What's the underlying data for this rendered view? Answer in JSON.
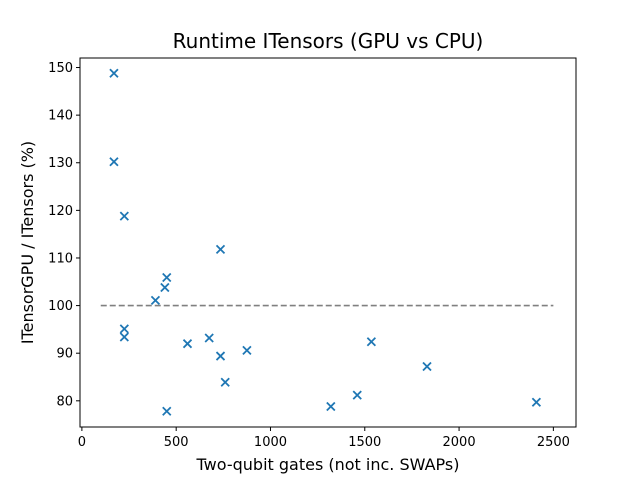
{
  "chart_data": {
    "type": "scatter",
    "title": "Runtime ITensors (GPU vs CPU)",
    "xlabel": "Two-qubit gates (not inc. SWAPs)",
    "ylabel": "ITensorGPU / ITensors (%)",
    "xlim": [
      -10,
      2620
    ],
    "ylim": [
      74.5,
      152
    ],
    "xticks": [
      0,
      500,
      1000,
      1500,
      2000,
      2500
    ],
    "yticks": [
      80,
      90,
      100,
      110,
      120,
      130,
      140,
      150
    ],
    "marker": "x",
    "marker_color": "#1f77b4",
    "grid": false,
    "series": [
      {
        "points": [
          {
            "x": 170,
            "y": 148.8
          },
          {
            "x": 170,
            "y": 130.2
          },
          {
            "x": 225,
            "y": 118.8
          },
          {
            "x": 225,
            "y": 95.1
          },
          {
            "x": 225,
            "y": 93.4
          },
          {
            "x": 390,
            "y": 101.1
          },
          {
            "x": 440,
            "y": 103.8
          },
          {
            "x": 450,
            "y": 105.9
          },
          {
            "x": 450,
            "y": 77.8
          },
          {
            "x": 560,
            "y": 92.0
          },
          {
            "x": 675,
            "y": 93.2
          },
          {
            "x": 735,
            "y": 111.8
          },
          {
            "x": 735,
            "y": 89.4
          },
          {
            "x": 760,
            "y": 83.9
          },
          {
            "x": 875,
            "y": 90.6
          },
          {
            "x": 1320,
            "y": 78.8
          },
          {
            "x": 1460,
            "y": 81.2
          },
          {
            "x": 1535,
            "y": 92.4
          },
          {
            "x": 1830,
            "y": 87.2
          },
          {
            "x": 2410,
            "y": 79.7
          }
        ]
      }
    ],
    "reference_line": {
      "x_start": 100,
      "x_end": 2500,
      "y": 100,
      "style": "dashed",
      "color": "#808080"
    }
  }
}
